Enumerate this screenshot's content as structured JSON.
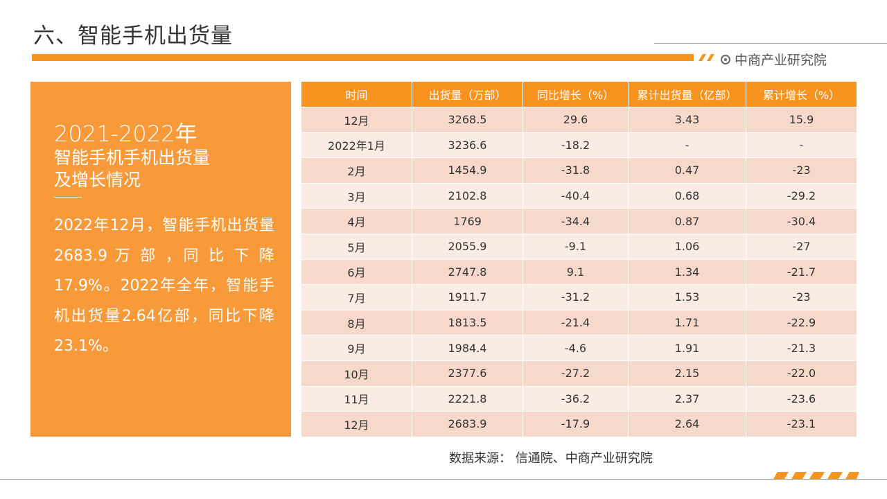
{
  "page_title": "六、智能手机出货量",
  "brand": {
    "name": "中商产业研究院",
    "icon": "target-icon"
  },
  "panel": {
    "year": "2021-2022年",
    "subtitle_line1": "智能手机手机出货量",
    "subtitle_line2": "及增长情况",
    "description": "2022年12月，智能手机出货量 2683.9 万 部 ，同 比 下 降17.9%。2022年全年，智能手机出货量2.64亿部，同比下降23.1%。"
  },
  "table": {
    "headers": [
      "时间",
      "出货量（万部）",
      "同比增长（%）",
      "累计出货量（亿部）",
      "累计增长（%）"
    ],
    "rows": [
      [
        "12月",
        "3268.5",
        "29.6",
        "3.43",
        "15.9"
      ],
      [
        "2022年1月",
        "3236.6",
        "-18.2",
        "-",
        "-"
      ],
      [
        "2月",
        "1454.9",
        "-31.8",
        "0.47",
        "-23"
      ],
      [
        "3月",
        "2102.8",
        "-40.4",
        "0.68",
        "-29.2"
      ],
      [
        "4月",
        "1769",
        "-34.4",
        "0.87",
        "-30.4"
      ],
      [
        "5月",
        "2055.9",
        "-9.1",
        "1.06",
        "-27"
      ],
      [
        "6月",
        "2747.8",
        "9.1",
        "1.34",
        "-21.7"
      ],
      [
        "7月",
        "1911.7",
        "-31.2",
        "1.53",
        "-23"
      ],
      [
        "8月",
        "1813.5",
        "-21.4",
        "1.71",
        "-22.9"
      ],
      [
        "9月",
        "1984.4",
        "-4.6",
        "1.91",
        "-21.3"
      ],
      [
        "10月",
        "2377.6",
        "-27.2",
        "2.15",
        "-22.0"
      ],
      [
        "11月",
        "2221.8",
        "-36.2",
        "2.37",
        "-23.6"
      ],
      [
        "12月",
        "2683.9",
        "-17.9",
        "2.64",
        "-23.1"
      ]
    ]
  },
  "source": "数据来源：  信通院、中商产业研究院",
  "colors": {
    "accent": "#f7931e",
    "panel": "#f89a3a",
    "row_odd": "#f7d9cc",
    "row_even": "#fbebe5"
  }
}
